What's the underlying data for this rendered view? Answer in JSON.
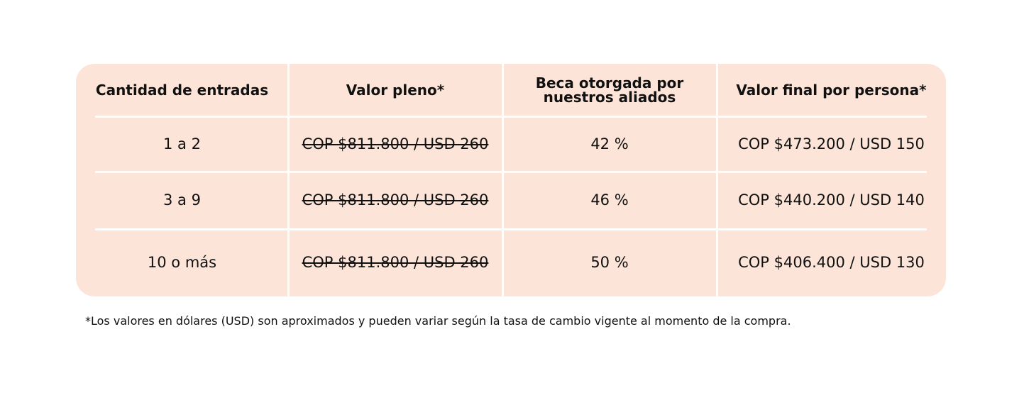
{
  "table": {
    "header": [
      "Cantidad de entradas",
      "Valor pleno*",
      "Beca otorgada por nuestros aliados",
      "Valor final por persona*"
    ],
    "rows": [
      [
        "1 a 2",
        "COP $811.800 / USD 260",
        "42 %",
        "COP $473.200 / USD 150"
      ],
      [
        "3 a 9",
        "COP $811.800 / USD 260",
        "46 %",
        "COP $440.200 / USD 140"
      ],
      [
        "10 o más",
        "COP $811.800 / USD 260",
        "50 %",
        "COP $406.400 / USD 130"
      ]
    ]
  },
  "footnote": "*Los valores en dólares (USD) son aproximados y pueden variar según la tasa de cambio vigente al momento de la compra."
}
